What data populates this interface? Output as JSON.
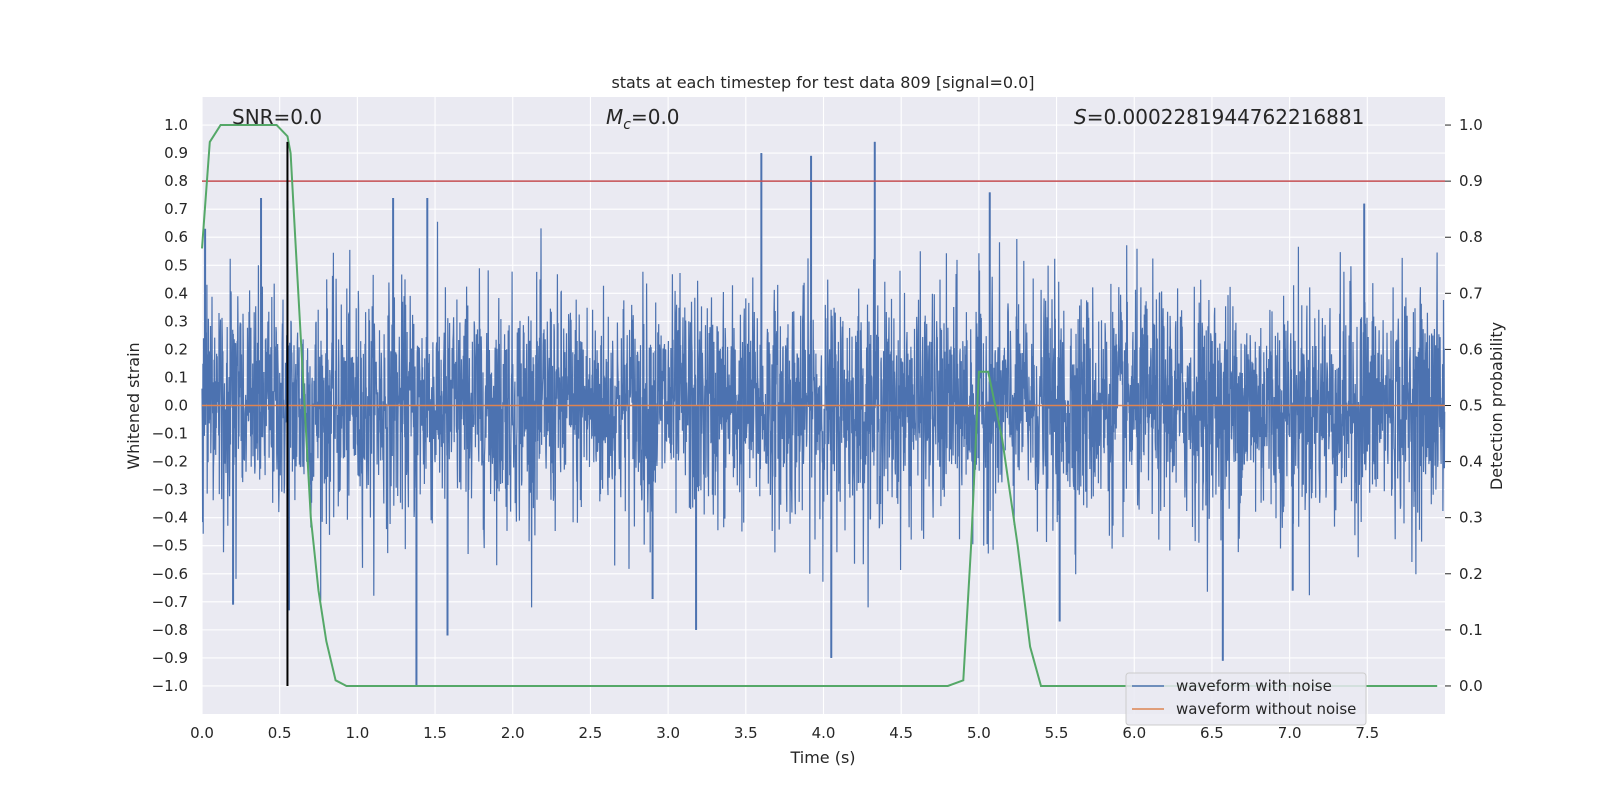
{
  "chart_data": {
    "type": "line",
    "title": "stats at each timestep for test data 809 [signal=0.0]",
    "xlabel": "Time (s)",
    "ylabel": "Whitened strain",
    "y2label": "Detection probability",
    "xlim": [
      0.0,
      8.0
    ],
    "ylim": [
      -1.1,
      1.1
    ],
    "y2lim": [
      -0.05,
      1.05
    ],
    "x_ticks": [
      0.0,
      0.5,
      1.0,
      1.5,
      2.0,
      2.5,
      3.0,
      3.5,
      4.0,
      4.5,
      5.0,
      5.5,
      6.0,
      6.5,
      7.0,
      7.5
    ],
    "x_tick_labels": [
      "0.0",
      "0.5",
      "1.0",
      "1.5",
      "2.0",
      "2.5",
      "3.0",
      "3.5",
      "4.0",
      "4.5",
      "5.0",
      "5.5",
      "6.0",
      "6.5",
      "7.0",
      "7.5"
    ],
    "y_ticks": [
      1.0,
      0.9,
      0.8,
      0.7,
      0.6,
      0.5,
      0.4,
      0.3,
      0.2,
      0.1,
      0.0,
      -0.1,
      -0.2,
      -0.3,
      -0.4,
      -0.5,
      -0.6,
      -0.7,
      -0.8,
      -0.9,
      -1.0
    ],
    "y_tick_labels": [
      "1.0",
      "0.9",
      "0.8",
      "0.7",
      "0.6",
      "0.5",
      "0.4",
      "0.3",
      "0.2",
      "0.1",
      "0.0",
      "−0.1",
      "−0.2",
      "−0.3",
      "−0.4",
      "−0.5",
      "−0.6",
      "−0.7",
      "−0.8",
      "−0.9",
      "−1.0"
    ],
    "y2_ticks": [
      1.0,
      0.9,
      0.8,
      0.7,
      0.6,
      0.5,
      0.4,
      0.3,
      0.2,
      0.1,
      0.0
    ],
    "y2_tick_labels": [
      "1.0",
      "0.9",
      "0.8",
      "0.7",
      "0.6",
      "0.5",
      "0.4",
      "0.3",
      "0.2",
      "0.1",
      "0.0"
    ],
    "annotations": {
      "snr": "SNR=0.0",
      "mc_symbol": "M",
      "mc_subscript": "c",
      "mc_value": "=0.0",
      "s_symbol": "S",
      "s_value": "=0.0002281944762216881"
    },
    "series": [
      {
        "name": "waveform with noise",
        "color": "#4c72b0",
        "kind": "noise",
        "approx_core_band": [
          -0.3,
          0.35
        ],
        "notable_peaks": [
          {
            "x": 0.02,
            "y": 0.63
          },
          {
            "x": 0.38,
            "y": 0.74
          },
          {
            "x": 0.55,
            "y": 0.73
          },
          {
            "x": 1.23,
            "y": 0.74
          },
          {
            "x": 1.45,
            "y": 0.74
          },
          {
            "x": 3.6,
            "y": 0.9
          },
          {
            "x": 3.92,
            "y": 0.89
          },
          {
            "x": 4.33,
            "y": 0.94
          },
          {
            "x": 5.07,
            "y": 0.76
          },
          {
            "x": 7.48,
            "y": 0.72
          }
        ],
        "notable_troughs": [
          {
            "x": 0.2,
            "y": -0.71
          },
          {
            "x": 0.56,
            "y": -0.73
          },
          {
            "x": 1.38,
            "y": -1.0
          },
          {
            "x": 1.58,
            "y": -0.82
          },
          {
            "x": 2.9,
            "y": -0.69
          },
          {
            "x": 3.18,
            "y": -0.8
          },
          {
            "x": 4.05,
            "y": -0.9
          },
          {
            "x": 5.52,
            "y": -0.77
          },
          {
            "x": 6.57,
            "y": -0.91
          },
          {
            "x": 7.02,
            "y": -0.66
          }
        ]
      },
      {
        "name": "waveform without noise",
        "color": "#dd8452",
        "x": [
          0.0,
          8.0
        ],
        "y": [
          0.0,
          0.0
        ]
      },
      {
        "name": "detection probability",
        "color": "#55a868",
        "axis": "right",
        "x": [
          0.0,
          0.05,
          0.12,
          0.3,
          0.48,
          0.55,
          0.57,
          0.6,
          0.65,
          0.7,
          0.75,
          0.8,
          0.86,
          0.93,
          1.0,
          1.5,
          2.0,
          3.0,
          4.0,
          4.6,
          4.8,
          4.9,
          4.95,
          5.0,
          5.06,
          5.15,
          5.25,
          5.33,
          5.4,
          5.45,
          6.0,
          7.0,
          7.95
        ],
        "y": [
          0.78,
          0.97,
          1.0,
          1.0,
          1.0,
          0.98,
          0.95,
          0.8,
          0.55,
          0.3,
          0.17,
          0.08,
          0.01,
          0.0,
          0.0,
          0.0,
          0.0,
          0.0,
          0.0,
          0.0,
          0.0,
          0.01,
          0.25,
          0.56,
          0.56,
          0.44,
          0.25,
          0.07,
          0.0,
          0.0,
          0.0,
          0.0,
          0.0
        ]
      }
    ],
    "threshold": {
      "y": 0.9,
      "axis": "right",
      "color": "#c44e52"
    },
    "marker_line": {
      "x": 0.55,
      "y_from": -1.0,
      "y_to": 0.94,
      "color": "#000000"
    },
    "legend": {
      "position": "lower-right",
      "entries": [
        {
          "label": "waveform with noise",
          "color": "#4c72b0"
        },
        {
          "label": "waveform without noise",
          "color": "#dd8452"
        }
      ]
    },
    "grid": true
  }
}
